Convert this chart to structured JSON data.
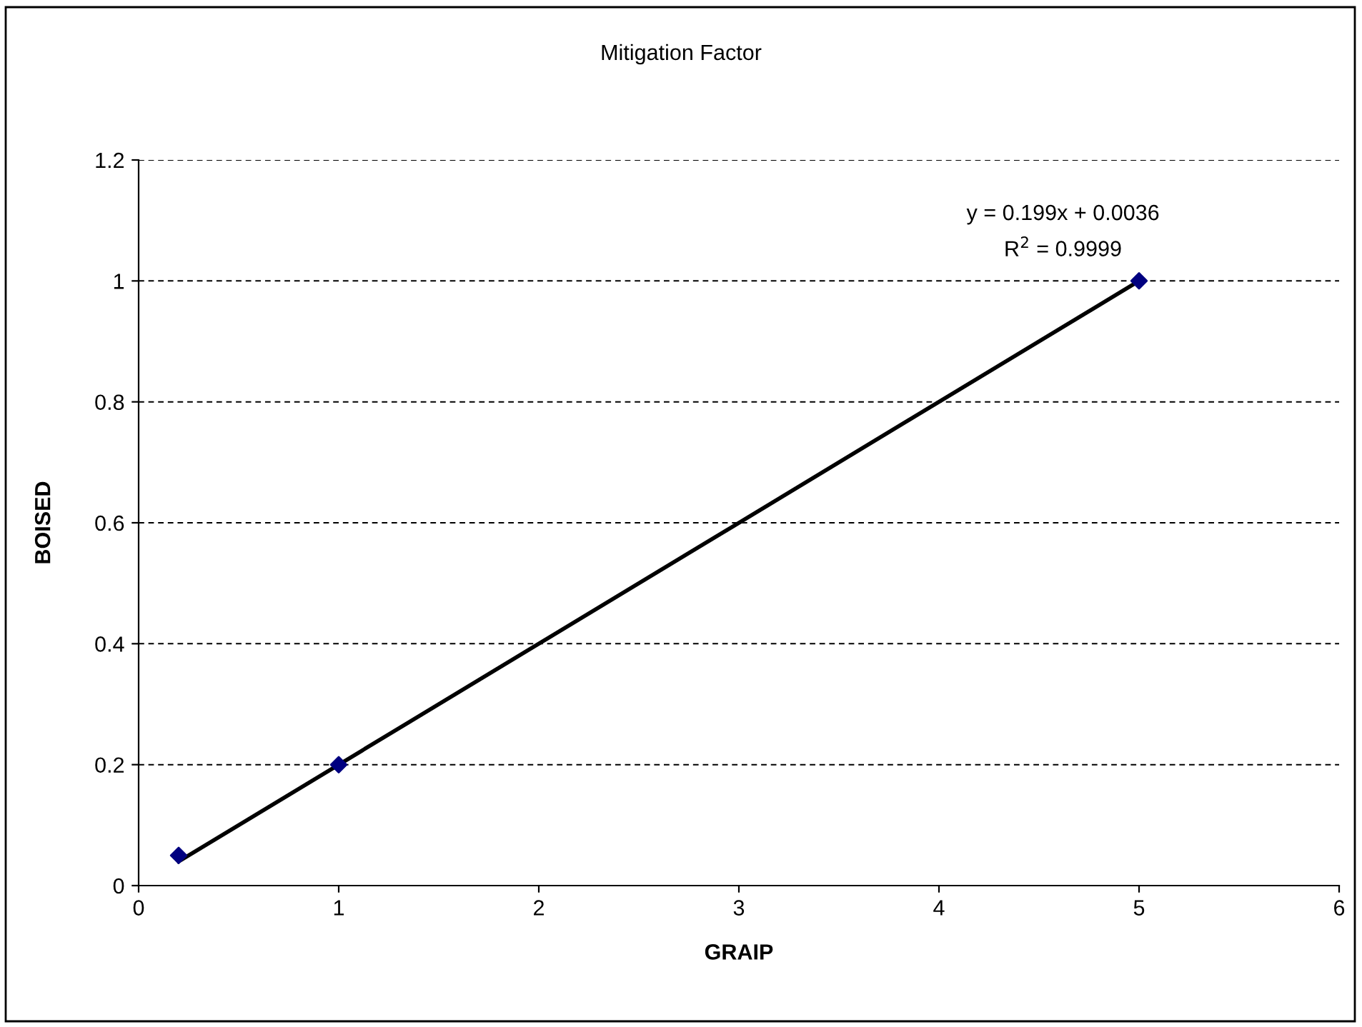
{
  "chart_data": {
    "type": "scatter",
    "title": "Mitigation Factor",
    "xlabel": "GRAIP",
    "ylabel": "BOISED",
    "series": [
      {
        "color": "#000080",
        "x": [
          0.2,
          1,
          5
        ],
        "values": [
          0.05,
          0.2,
          1.0
        ],
        "marker": "diamond"
      },
      {
        "type": "line",
        "color": "#000000",
        "x": [
          0.2,
          5
        ],
        "values": [
          0.04,
          1.0
        ],
        "line_style": "solid",
        "marker": "none"
      }
    ],
    "annotations": [
      "y = 0.199x + 0.0036",
      "R$^{2}$ = 0.9999"
    ],
    "xlim": [
      0,
      6
    ],
    "xticks": [
      0,
      1,
      2,
      3,
      4,
      5,
      6
    ],
    "ylim": [
      0,
      1.2
    ],
    "yticks": [
      0,
      0.2,
      0.4,
      0.6,
      0.8,
      1,
      1.2
    ],
    "grid": "y",
    "legend": false
  }
}
